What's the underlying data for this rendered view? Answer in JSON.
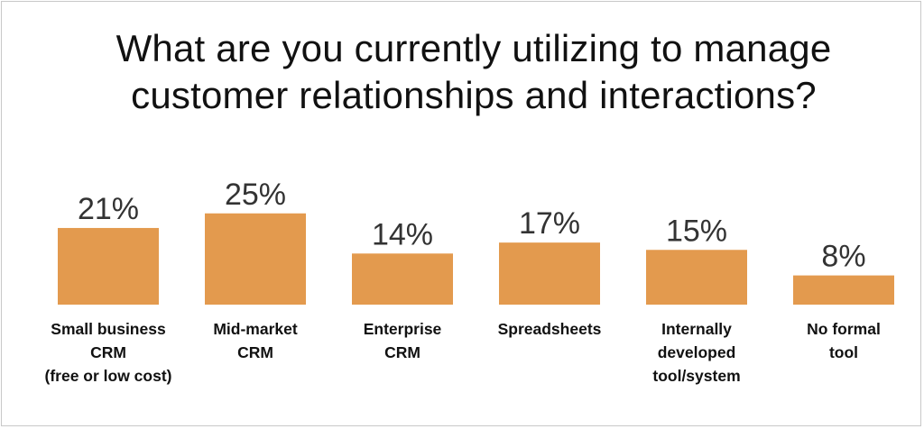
{
  "chart_data": {
    "type": "bar",
    "title_lines": [
      "What are you currently utilizing to manage",
      "customer relationships and interactions?"
    ],
    "categories": [
      [
        "Small business",
        "CRM",
        "(free or low cost)"
      ],
      [
        "Mid-market",
        "CRM"
      ],
      [
        "Enterprise",
        "CRM"
      ],
      [
        "Spreadsheets"
      ],
      [
        "Internally",
        "developed",
        "tool/system"
      ],
      [
        "No formal",
        "tool"
      ]
    ],
    "values": [
      21,
      25,
      14,
      17,
      15,
      8
    ],
    "value_labels": [
      "21%",
      "25%",
      "14%",
      "17%",
      "15%",
      "8%"
    ],
    "unit": "%",
    "bar_color": "#e39a4e",
    "grid": false,
    "legend": "none"
  }
}
